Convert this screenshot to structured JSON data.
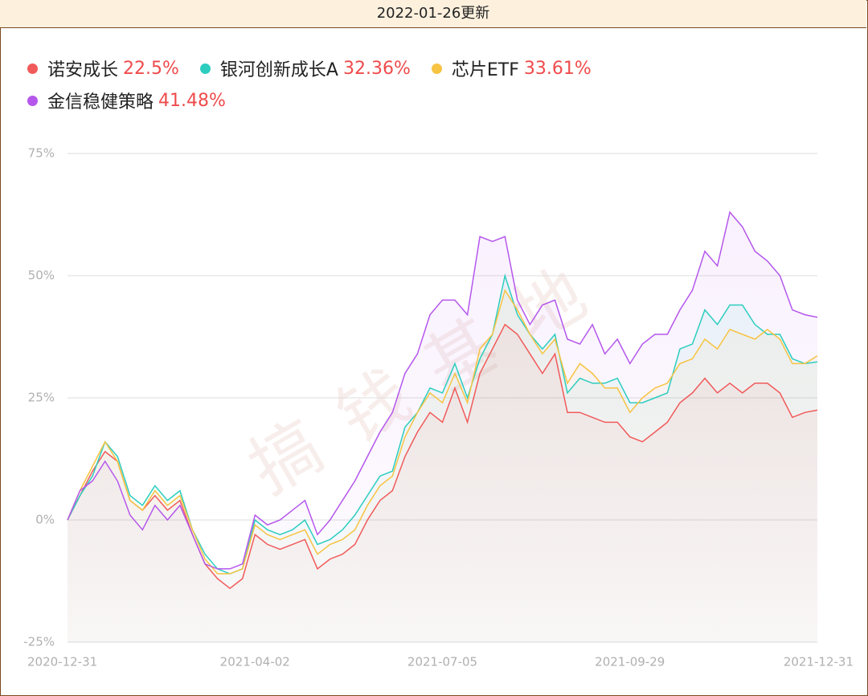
{
  "header": {
    "title": "2022-01-26更新"
  },
  "chart_data": {
    "type": "line",
    "watermark": "搞钱基地",
    "categories": [
      "2020-12-31",
      null,
      null,
      null,
      null,
      null,
      null,
      null,
      null,
      null,
      null,
      null,
      null,
      null,
      null,
      "2021-04-02",
      null,
      null,
      null,
      null,
      null,
      null,
      null,
      null,
      null,
      null,
      null,
      null,
      null,
      null,
      "2021-07-05",
      null,
      null,
      null,
      null,
      null,
      null,
      null,
      null,
      null,
      null,
      null,
      null,
      null,
      null,
      "2021-09-29",
      null,
      null,
      null,
      null,
      null,
      null,
      null,
      null,
      null,
      null,
      null,
      null,
      null,
      null,
      "2021-12-31"
    ],
    "ylim": [
      -25,
      75
    ],
    "yticks": [
      {
        "value": -25,
        "label": "-25%"
      },
      {
        "value": 0,
        "label": "0%"
      },
      {
        "value": 25,
        "label": "25%"
      },
      {
        "value": 50,
        "label": "50%"
      },
      {
        "value": 75,
        "label": "75%"
      }
    ],
    "grid": true,
    "series": [
      {
        "name": "诺安成长",
        "label": "22.5%",
        "color": "#f15a5a",
        "values": [
          0,
          5,
          10,
          14,
          12,
          4,
          2,
          5,
          2,
          4,
          -3,
          -9,
          -12,
          -14,
          -12,
          -3,
          -5,
          -6,
          -5,
          -4,
          -10,
          -8,
          -7,
          -5,
          0,
          4,
          6,
          13,
          18,
          22,
          20,
          27,
          20,
          30,
          35,
          40,
          38,
          34,
          30,
          34,
          22,
          22,
          21,
          20,
          20,
          17,
          16,
          18,
          20,
          24,
          26,
          29,
          26,
          28,
          26,
          28,
          28,
          26,
          21,
          22,
          22.5
        ]
      },
      {
        "name": "银河创新成长A",
        "label": "32.36%",
        "color": "#2ccdbf",
        "values": [
          0,
          5,
          9,
          16,
          13,
          5,
          3,
          7,
          4,
          6,
          -2,
          -7,
          -10,
          -11,
          -10,
          0,
          -2,
          -3,
          -2,
          0,
          -5,
          -4,
          -2,
          1,
          5,
          9,
          10,
          19,
          22,
          27,
          26,
          32,
          25,
          33,
          38,
          50,
          42,
          38,
          35,
          38,
          26,
          29,
          28,
          28,
          29,
          24,
          24,
          25,
          26,
          35,
          36,
          43,
          40,
          44,
          44,
          40,
          38,
          38,
          33,
          32,
          32.36
        ]
      },
      {
        "name": "芯片ETF",
        "label": "33.61%",
        "color": "#f7c342",
        "values": [
          0,
          6,
          11,
          16,
          12,
          4,
          2,
          6,
          3,
          5,
          -2,
          -8,
          -11,
          -11,
          -10,
          -1,
          -3,
          -4,
          -3,
          -2,
          -7,
          -5,
          -4,
          -2,
          3,
          7,
          9,
          17,
          22,
          26,
          24,
          30,
          24,
          35,
          38,
          47,
          43,
          38,
          34,
          37,
          28,
          32,
          30,
          27,
          27,
          22,
          25,
          27,
          28,
          32,
          33,
          37,
          35,
          39,
          38,
          37,
          39,
          37,
          32,
          32,
          33.61
        ]
      },
      {
        "name": "金信稳健策略",
        "label": "41.48%",
        "color": "#b557ec",
        "values": [
          0,
          6,
          8,
          12,
          8,
          1,
          -2,
          3,
          0,
          3,
          -3,
          -9,
          -10,
          -10,
          -9,
          1,
          -1,
          0,
          2,
          4,
          -3,
          0,
          4,
          8,
          13,
          18,
          22,
          30,
          34,
          42,
          45,
          45,
          42,
          58,
          57,
          58,
          45,
          40,
          44,
          45,
          37,
          36,
          40,
          34,
          37,
          32,
          36,
          38,
          38,
          43,
          47,
          55,
          52,
          63,
          60,
          55,
          53,
          50,
          43,
          42,
          41.48
        ]
      }
    ]
  }
}
